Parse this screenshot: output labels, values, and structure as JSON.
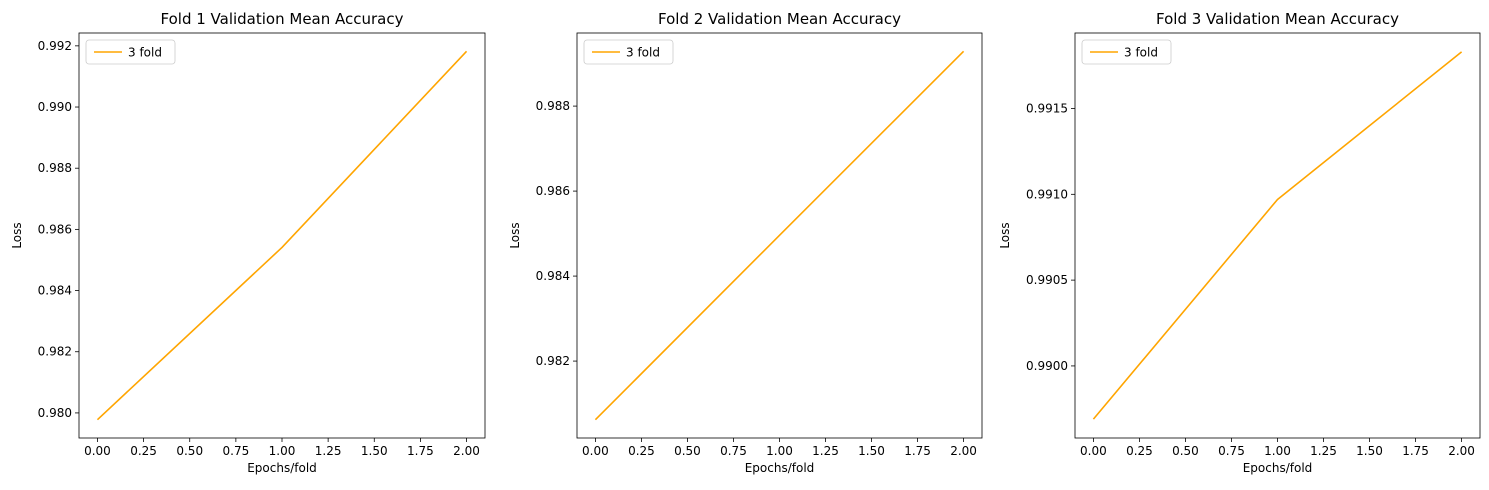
{
  "chart_data": [
    {
      "type": "line",
      "title": "Fold 1 Validation Mean Accuracy",
      "xlabel": "Epochs/fold",
      "ylabel": "Loss",
      "x": [
        0,
        1,
        2
      ],
      "series": [
        {
          "name": "3 fold",
          "color": "#ffa500",
          "values": [
            0.97978,
            0.98541,
            0.99182
          ]
        }
      ],
      "xlim": [
        -0.1,
        2.1
      ],
      "ylim": [
        0.97918,
        0.99242
      ],
      "xticks": [
        0.0,
        0.25,
        0.5,
        0.75,
        1.0,
        1.25,
        1.5,
        1.75,
        2.0
      ],
      "xtick_labels": [
        "0.00",
        "0.25",
        "0.50",
        "0.75",
        "1.00",
        "1.25",
        "1.50",
        "1.75",
        "2.00"
      ],
      "yticks": [
        0.98,
        0.982,
        0.984,
        0.986,
        0.988,
        0.99,
        0.992
      ],
      "ytick_labels": [
        "0.980",
        "0.982",
        "0.984",
        "0.986",
        "0.988",
        "0.990",
        "0.992"
      ],
      "legend": "upper-left",
      "grid": false
    },
    {
      "type": "line",
      "title": "Fold 2 Validation Mean Accuracy",
      "xlabel": "Epochs/fold",
      "ylabel": "Loss",
      "x": [
        0,
        1,
        2
      ],
      "series": [
        {
          "name": "3 fold",
          "color": "#ffa500",
          "values": [
            0.98062,
            0.98496,
            0.98929
          ]
        }
      ],
      "xlim": [
        -0.1,
        2.1
      ],
      "ylim": [
        0.98019,
        0.98972
      ],
      "xticks": [
        0.0,
        0.25,
        0.5,
        0.75,
        1.0,
        1.25,
        1.5,
        1.75,
        2.0
      ],
      "xtick_labels": [
        "0.00",
        "0.25",
        "0.50",
        "0.75",
        "1.00",
        "1.25",
        "1.50",
        "1.75",
        "2.00"
      ],
      "yticks": [
        0.982,
        0.984,
        0.986,
        0.988
      ],
      "ytick_labels": [
        "0.982",
        "0.984",
        "0.986",
        "0.988"
      ],
      "legend": "upper-left",
      "grid": false
    },
    {
      "type": "line",
      "title": "Fold 3 Validation Mean Accuracy",
      "xlabel": "Epochs/fold",
      "ylabel": "Loss",
      "x": [
        0,
        1,
        2
      ],
      "series": [
        {
          "name": "3 fold",
          "color": "#ffa500",
          "values": [
            0.98969,
            0.99097,
            0.99183
          ]
        }
      ],
      "xlim": [
        -0.1,
        2.1
      ],
      "ylim": [
        0.98958,
        0.99194
      ],
      "xticks": [
        0.0,
        0.25,
        0.5,
        0.75,
        1.0,
        1.25,
        1.5,
        1.75,
        2.0
      ],
      "xtick_labels": [
        "0.00",
        "0.25",
        "0.50",
        "0.75",
        "1.00",
        "1.25",
        "1.50",
        "1.75",
        "2.00"
      ],
      "yticks": [
        0.99,
        0.9905,
        0.991,
        0.9915
      ],
      "ytick_labels": [
        "0.9900",
        "0.9905",
        "0.9910",
        "0.9915"
      ],
      "legend": "upper-left",
      "grid": false
    }
  ]
}
